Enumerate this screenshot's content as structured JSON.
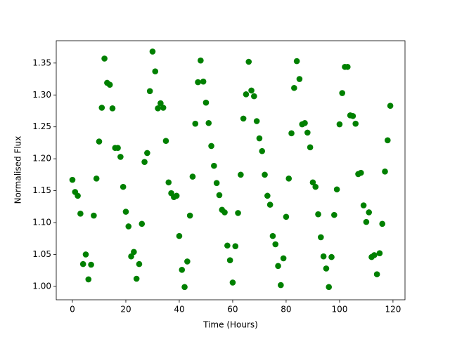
{
  "chart_data": {
    "type": "scatter",
    "xlabel": "Time (Hours)",
    "ylabel": "Normalised Flux",
    "color": "#008000",
    "xlim": [
      -6.05,
      124.5
    ],
    "ylim": [
      0.979,
      1.385
    ],
    "xticks": [
      0,
      20,
      40,
      60,
      80,
      100,
      120
    ],
    "yticks": [
      {
        "value": 1.0,
        "label": "1.00"
      },
      1.05,
      {
        "value": 1.1,
        "label": "1.10"
      },
      1.15,
      {
        "value": 1.2,
        "label": "1.20"
      },
      1.25,
      {
        "value": 1.3,
        "label": "1.30"
      },
      1.35
    ],
    "x": [
      0,
      1,
      2,
      3,
      4,
      5,
      6,
      7,
      8,
      9,
      10,
      11,
      12,
      13,
      14,
      15,
      16,
      17,
      18,
      19,
      20,
      21,
      22,
      23,
      24,
      25,
      26,
      27,
      28,
      29,
      30,
      31,
      32,
      33,
      34,
      35,
      36,
      37,
      38,
      39,
      40,
      41,
      42,
      43,
      44,
      45,
      46,
      47,
      48,
      49,
      50,
      51,
      52,
      53,
      54,
      55,
      56,
      57,
      58,
      59,
      60,
      61,
      62,
      63,
      64,
      65,
      66,
      67,
      68,
      69,
      70,
      71,
      72,
      73,
      74,
      75,
      76,
      77,
      78,
      79,
      80,
      81,
      82,
      83,
      84,
      85,
      86,
      87,
      88,
      89,
      90,
      91,
      92,
      93,
      94,
      95,
      96,
      97,
      98,
      99,
      100,
      101,
      102,
      103,
      104,
      105,
      106,
      107,
      108,
      109,
      110,
      111,
      112,
      113,
      114,
      115,
      116,
      117,
      118,
      119
    ],
    "values": [
      1.167,
      1.148,
      1.142,
      1.114,
      1.035,
      1.05,
      1.011,
      1.034,
      1.111,
      1.169,
      1.227,
      1.28,
      1.357,
      1.319,
      1.316,
      1.279,
      1.217,
      1.217,
      1.203,
      1.156,
      1.117,
      1.094,
      1.047,
      1.054,
      1.012,
      1.035,
      1.098,
      1.195,
      1.209,
      1.306,
      1.368,
      1.337,
      1.279,
      1.287,
      1.28,
      1.228,
      1.163,
      1.146,
      1.14,
      1.142,
      1.079,
      1.026,
      0.999,
      1.039,
      1.111,
      1.172,
      1.255,
      1.32,
      1.354,
      1.321,
      1.288,
      1.256,
      1.22,
      1.189,
      1.162,
      1.143,
      1.12,
      1.116,
      1.064,
      1.041,
      1.006,
      1.063,
      1.115,
      1.175,
      1.263,
      1.301,
      1.352,
      1.307,
      1.298,
      1.259,
      1.232,
      1.212,
      1.175,
      1.142,
      1.128,
      1.079,
      1.066,
      1.032,
      1.002,
      1.044,
      1.109,
      1.169,
      1.24,
      1.311,
      1.353,
      1.325,
      1.254,
      1.256,
      1.241,
      1.218,
      1.163,
      1.156,
      1.113,
      1.077,
      1.047,
      1.028,
      0.999,
      1.046,
      1.112,
      1.152,
      1.254,
      1.303,
      1.344,
      1.344,
      1.268,
      1.267,
      1.255,
      1.176,
      1.178,
      1.127,
      1.101,
      1.116,
      1.046,
      1.049,
      1.019,
      1.052,
      1.098,
      1.18,
      1.229,
      1.283
    ]
  }
}
